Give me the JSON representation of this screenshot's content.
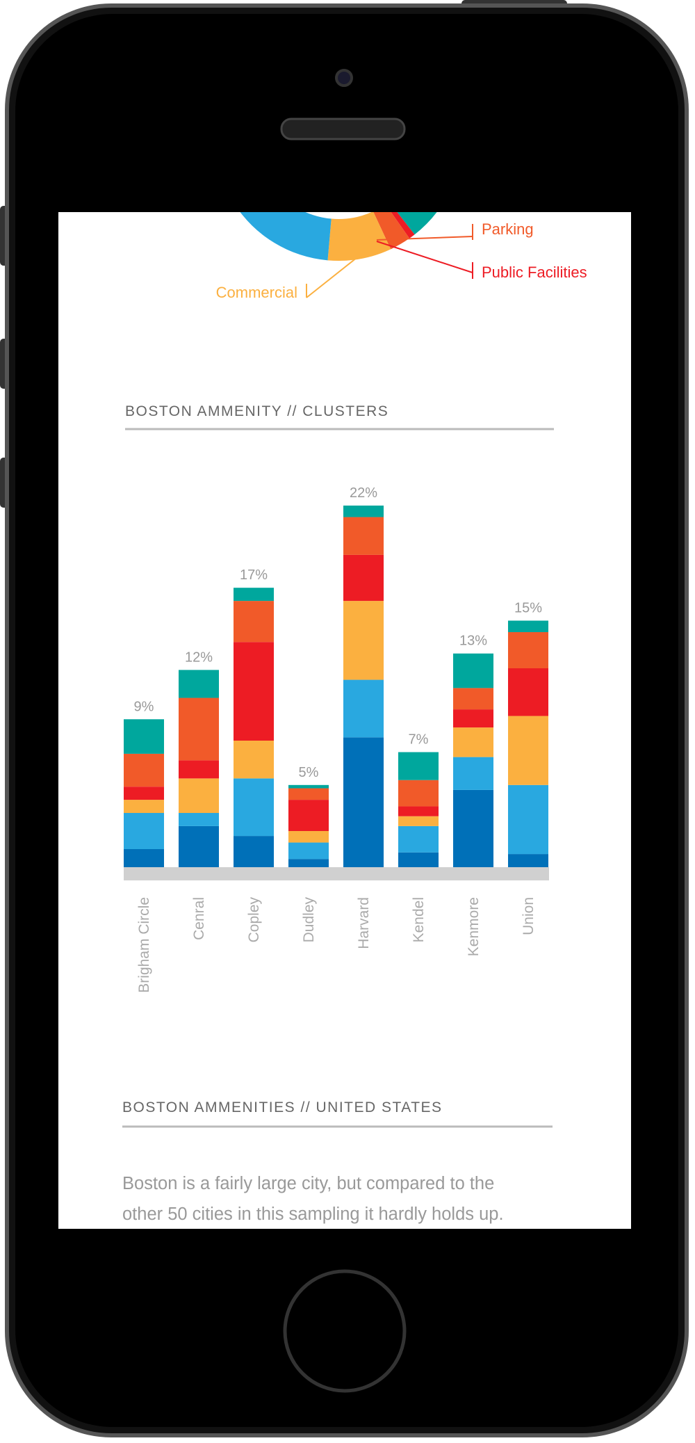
{
  "donut_labels": [
    "Parking",
    "Public Facilities",
    "Commercial"
  ],
  "chart_data": {
    "type": "bar",
    "stacked": true,
    "title": "BOSTON AMMENITY // CLUSTERS",
    "categories": [
      "Brigham Circle",
      "Cenral",
      "Copley",
      "Dudley",
      "Harvard",
      "Kendel",
      "Kenmore",
      "Union"
    ],
    "series": [
      {
        "color": "#0070b8",
        "values": [
          1.1,
          2.5,
          1.9,
          0.5,
          7.9,
          0.9,
          4.7,
          0.8
        ]
      },
      {
        "color": "#29a8e0",
        "values": [
          2.2,
          0.8,
          3.5,
          1.0,
          3.5,
          1.6,
          2.0,
          4.2
        ]
      },
      {
        "color": "#fbb040",
        "values": [
          0.8,
          2.1,
          2.3,
          0.7,
          4.8,
          0.6,
          1.8,
          4.2
        ]
      },
      {
        "color": "#ed1c24",
        "values": [
          0.8,
          1.1,
          6.0,
          1.9,
          2.8,
          0.6,
          1.1,
          2.9
        ]
      },
      {
        "color": "#f15a29",
        "values": [
          2.0,
          3.8,
          2.5,
          0.7,
          2.3,
          1.6,
          1.3,
          2.2
        ]
      },
      {
        "color": "#00a79d",
        "values": [
          2.1,
          1.7,
          0.8,
          0.2,
          0.7,
          1.7,
          2.1,
          0.7
        ]
      }
    ],
    "totals": [
      9,
      12,
      17,
      5,
      22,
      7,
      13,
      15
    ],
    "total_labels": [
      "9%",
      "12%",
      "17%",
      "5%",
      "22%",
      "7%",
      "13%",
      "15%"
    ]
  },
  "section": {
    "title": "BOSTON AMMENITIES // UNITED STATES",
    "text_lines": [
      "Boston is a fairly large city, but compared to the",
      "other 50 cities in this sampling it hardly holds up."
    ]
  }
}
